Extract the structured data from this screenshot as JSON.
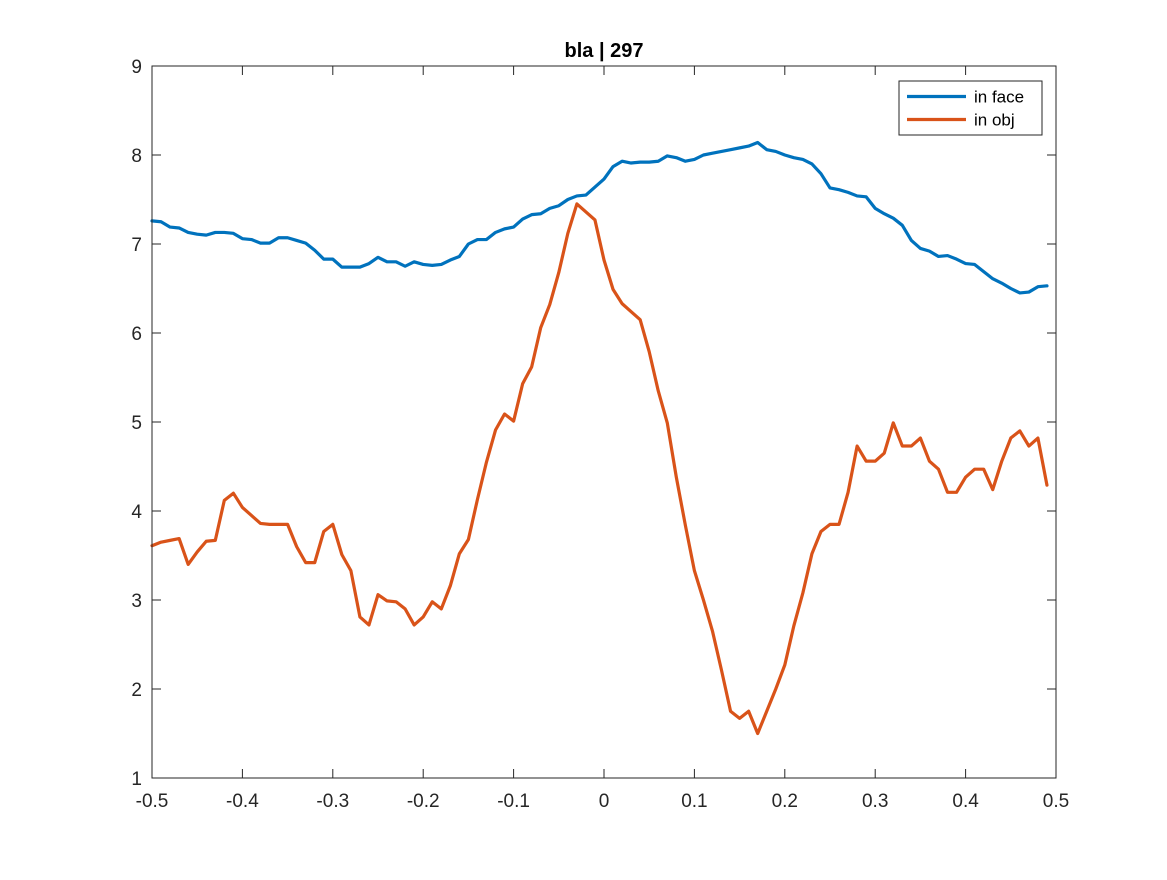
{
  "chart_data": {
    "type": "line",
    "title": "bla | 297",
    "xlabel": "",
    "ylabel": "",
    "xlim": [
      -0.5,
      0.5
    ],
    "ylim": [
      1,
      9
    ],
    "xticks": [
      -0.5,
      -0.4,
      -0.3,
      -0.2,
      -0.1,
      0,
      0.1,
      0.2,
      0.3,
      0.4,
      0.5
    ],
    "xtick_labels": [
      "-0.5",
      "-0.4",
      "-0.3",
      "-0.2",
      "-0.1",
      "0",
      "0.1",
      "0.2",
      "0.3",
      "0.4",
      "0.5"
    ],
    "yticks": [
      1,
      2,
      3,
      4,
      5,
      6,
      7,
      8,
      9
    ],
    "ytick_labels": [
      "1",
      "2",
      "3",
      "4",
      "5",
      "6",
      "7",
      "8",
      "9"
    ],
    "grid": false,
    "legend_position": "top-right",
    "x": [
      -0.5,
      -0.49,
      -0.48,
      -0.47,
      -0.46,
      -0.45,
      -0.44,
      -0.43,
      -0.42,
      -0.41,
      -0.4,
      -0.39,
      -0.38,
      -0.37,
      -0.36,
      -0.35,
      -0.34,
      -0.33,
      -0.32,
      -0.31,
      -0.3,
      -0.29,
      -0.28,
      -0.27,
      -0.26,
      -0.25,
      -0.24,
      -0.23,
      -0.22,
      -0.21,
      -0.2,
      -0.19,
      -0.18,
      -0.17,
      -0.16,
      -0.15,
      -0.14,
      -0.13,
      -0.12,
      -0.11,
      -0.1,
      -0.09,
      -0.08,
      -0.07,
      -0.06,
      -0.05,
      -0.04,
      -0.03,
      -0.02,
      -0.01,
      0,
      0.01,
      0.02,
      0.03,
      0.04,
      0.05,
      0.06,
      0.07,
      0.08,
      0.09,
      0.1,
      0.11,
      0.12,
      0.13,
      0.14,
      0.15,
      0.16,
      0.17,
      0.18,
      0.19,
      0.2,
      0.21,
      0.22,
      0.23,
      0.24,
      0.25,
      0.26,
      0.27,
      0.28,
      0.29,
      0.3,
      0.31,
      0.32,
      0.33,
      0.34,
      0.35,
      0.36,
      0.37,
      0.38,
      0.39,
      0.4,
      0.41,
      0.42,
      0.43,
      0.44,
      0.45,
      0.46,
      0.47,
      0.48,
      0.49
    ],
    "series": [
      {
        "name": "in face",
        "color": "#0072BD",
        "values": [
          7.26,
          7.25,
          7.19,
          7.18,
          7.13,
          7.11,
          7.1,
          7.13,
          7.13,
          7.12,
          7.06,
          7.05,
          7.01,
          7.01,
          7.07,
          7.07,
          7.04,
          7.01,
          6.93,
          6.83,
          6.83,
          6.74,
          6.74,
          6.74,
          6.78,
          6.85,
          6.8,
          6.8,
          6.75,
          6.8,
          6.77,
          6.76,
          6.77,
          6.82,
          6.86,
          7.0,
          7.05,
          7.05,
          7.13,
          7.17,
          7.19,
          7.28,
          7.33,
          7.34,
          7.4,
          7.43,
          7.5,
          7.54,
          7.55,
          7.64,
          7.73,
          7.87,
          7.93,
          7.91,
          7.92,
          7.92,
          7.93,
          7.99,
          7.97,
          7.93,
          7.95,
          8.0,
          8.02,
          8.04,
          8.06,
          8.08,
          8.1,
          8.14,
          8.06,
          8.04,
          8.0,
          7.97,
          7.95,
          7.9,
          7.79,
          7.63,
          7.61,
          7.58,
          7.54,
          7.53,
          7.4,
          7.34,
          7.29,
          7.21,
          7.04,
          6.95,
          6.92,
          6.86,
          6.87,
          6.83,
          6.78,
          6.77,
          6.69,
          6.61,
          6.56,
          6.5,
          6.45,
          6.46,
          6.52,
          6.53
        ]
      },
      {
        "name": "in obj",
        "color": "#D95319",
        "values": [
          3.61,
          3.65,
          3.67,
          3.69,
          3.4,
          3.54,
          3.66,
          3.67,
          4.12,
          4.2,
          4.04,
          3.95,
          3.86,
          3.85,
          3.85,
          3.85,
          3.6,
          3.42,
          3.42,
          3.77,
          3.85,
          3.51,
          3.33,
          2.81,
          2.72,
          3.06,
          2.99,
          2.98,
          2.9,
          2.72,
          2.81,
          2.98,
          2.9,
          3.16,
          3.52,
          3.68,
          4.13,
          4.55,
          4.91,
          5.09,
          5.01,
          5.43,
          5.62,
          6.06,
          6.32,
          6.68,
          7.12,
          7.45,
          7.36,
          7.27,
          6.82,
          6.49,
          6.33,
          6.24,
          6.15,
          5.79,
          5.35,
          4.99,
          4.38,
          3.84,
          3.33,
          3.0,
          2.65,
          2.21,
          1.75,
          1.67,
          1.75,
          1.5,
          1.75,
          2.0,
          2.27,
          2.71,
          3.08,
          3.52,
          3.77,
          3.85,
          3.85,
          4.21,
          4.73,
          4.56,
          4.56,
          4.65,
          4.99,
          4.73,
          4.73,
          4.82,
          4.56,
          4.47,
          4.21,
          4.21,
          4.38,
          4.47,
          4.47,
          4.24,
          4.56,
          4.82,
          4.9,
          4.73,
          4.82,
          4.29
        ]
      }
    ]
  }
}
